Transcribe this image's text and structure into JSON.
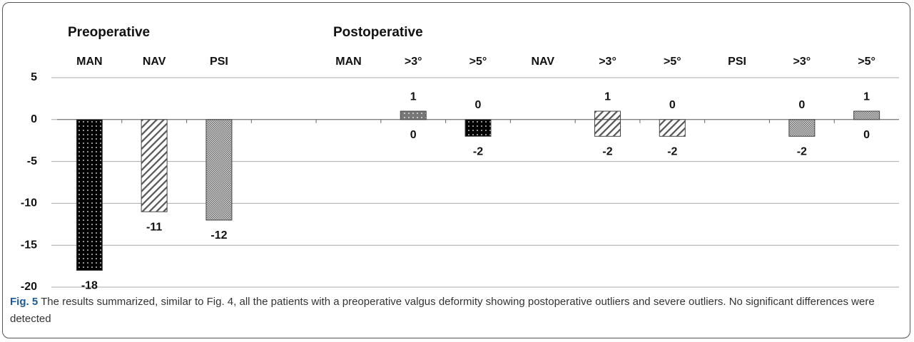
{
  "chart_data": {
    "type": "bar",
    "group_labels": [
      "Preoperative",
      "Postoperative"
    ],
    "categories": [
      "MAN",
      "NAV",
      "PSI",
      null,
      "MAN",
      ">3°",
      ">5°",
      "NAV",
      ">3°",
      ">5°",
      "PSI",
      ">3°",
      ">5°"
    ],
    "series": [
      {
        "values": [
          null,
          null,
          null,
          null,
          null,
          1,
          0,
          null,
          1,
          0,
          null,
          0,
          1
        ]
      },
      {
        "values": [
          -18,
          -11,
          -12,
          null,
          null,
          0,
          -2,
          null,
          -2,
          -2,
          null,
          -2,
          0
        ]
      }
    ],
    "patterns": [
      "dots",
      "hatch",
      "mesh",
      null,
      null,
      "lightdots",
      "dots",
      null,
      "hatch",
      "hatch",
      null,
      "mesh",
      "mesh"
    ],
    "ylim": [
      -20,
      5
    ],
    "yticks": [
      -20,
      -15,
      -10,
      -5,
      0,
      5
    ],
    "grid": true,
    "caption_label": "Fig. 5",
    "caption": "The results summarized, similar to Fig. 4, all the patients with a preoperative valgus deformity showing postoperative outliers and severe outliers. No significant differences were detected"
  }
}
